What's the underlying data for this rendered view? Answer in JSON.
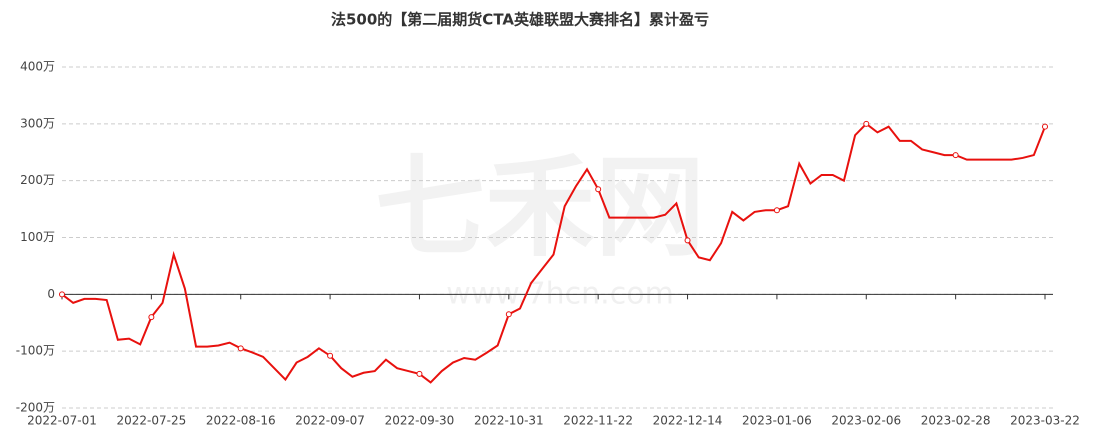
{
  "chart_data": {
    "type": "line",
    "title": "法500的【第二届期货CTA英雄联盟大赛排名】累计盈亏",
    "watermark": [
      "七禾网",
      "www.7hcn.com"
    ],
    "categories": [
      "2022-07-01",
      null,
      null,
      null,
      null,
      null,
      null,
      null,
      "2022-07-25",
      null,
      null,
      null,
      null,
      null,
      null,
      null,
      "2022-08-16",
      null,
      null,
      null,
      null,
      null,
      null,
      null,
      "2022-09-07",
      null,
      null,
      null,
      null,
      null,
      null,
      null,
      "2022-09-30",
      null,
      null,
      null,
      null,
      null,
      null,
      null,
      "2022-10-31",
      null,
      null,
      null,
      null,
      null,
      null,
      null,
      "2022-11-22",
      null,
      null,
      null,
      null,
      null,
      null,
      null,
      "2022-12-14",
      null,
      null,
      null,
      null,
      null,
      null,
      null,
      "2023-01-06",
      null,
      null,
      null,
      null,
      null,
      null,
      null,
      "2023-02-06",
      null,
      null,
      null,
      null,
      null,
      null,
      null,
      "2023-02-28",
      null,
      null,
      null,
      null,
      null,
      null,
      null,
      "2023-03-22"
    ],
    "series": [
      {
        "color": "#e8110e",
        "values": [
          0,
          -15,
          -8,
          -8,
          -10,
          -80,
          -78,
          -88,
          -40,
          -15,
          70,
          10,
          -92,
          -92,
          -90,
          -85,
          -95,
          -102,
          -110,
          -130,
          -150,
          -120,
          -110,
          -95,
          -108,
          -130,
          -145,
          -138,
          -135,
          -115,
          -130,
          -135,
          -140,
          -155,
          -135,
          -120,
          -112,
          -115,
          -103,
          -90,
          -35,
          -25,
          20,
          45,
          70,
          155,
          190,
          220,
          185,
          135,
          135,
          135,
          135,
          135,
          140,
          160,
          95,
          65,
          60,
          90,
          145,
          130,
          145,
          148,
          148,
          155,
          230,
          195,
          210,
          210,
          200,
          280,
          300,
          285,
          295,
          270,
          270,
          255,
          250,
          245,
          245,
          237,
          237,
          237,
          237,
          237,
          240,
          245,
          295
        ]
      }
    ],
    "ylim": [
      -200,
      400
    ],
    "yticks": [
      {
        "value": -200,
        "label": "-200万"
      },
      {
        "value": -100,
        "label": "-100万"
      },
      0,
      {
        "value": 100,
        "label": "100万"
      },
      {
        "value": 200,
        "label": "200万"
      },
      {
        "value": 300,
        "label": "300万"
      },
      {
        "value": 400,
        "label": "400万"
      }
    ],
    "grid": true
  }
}
